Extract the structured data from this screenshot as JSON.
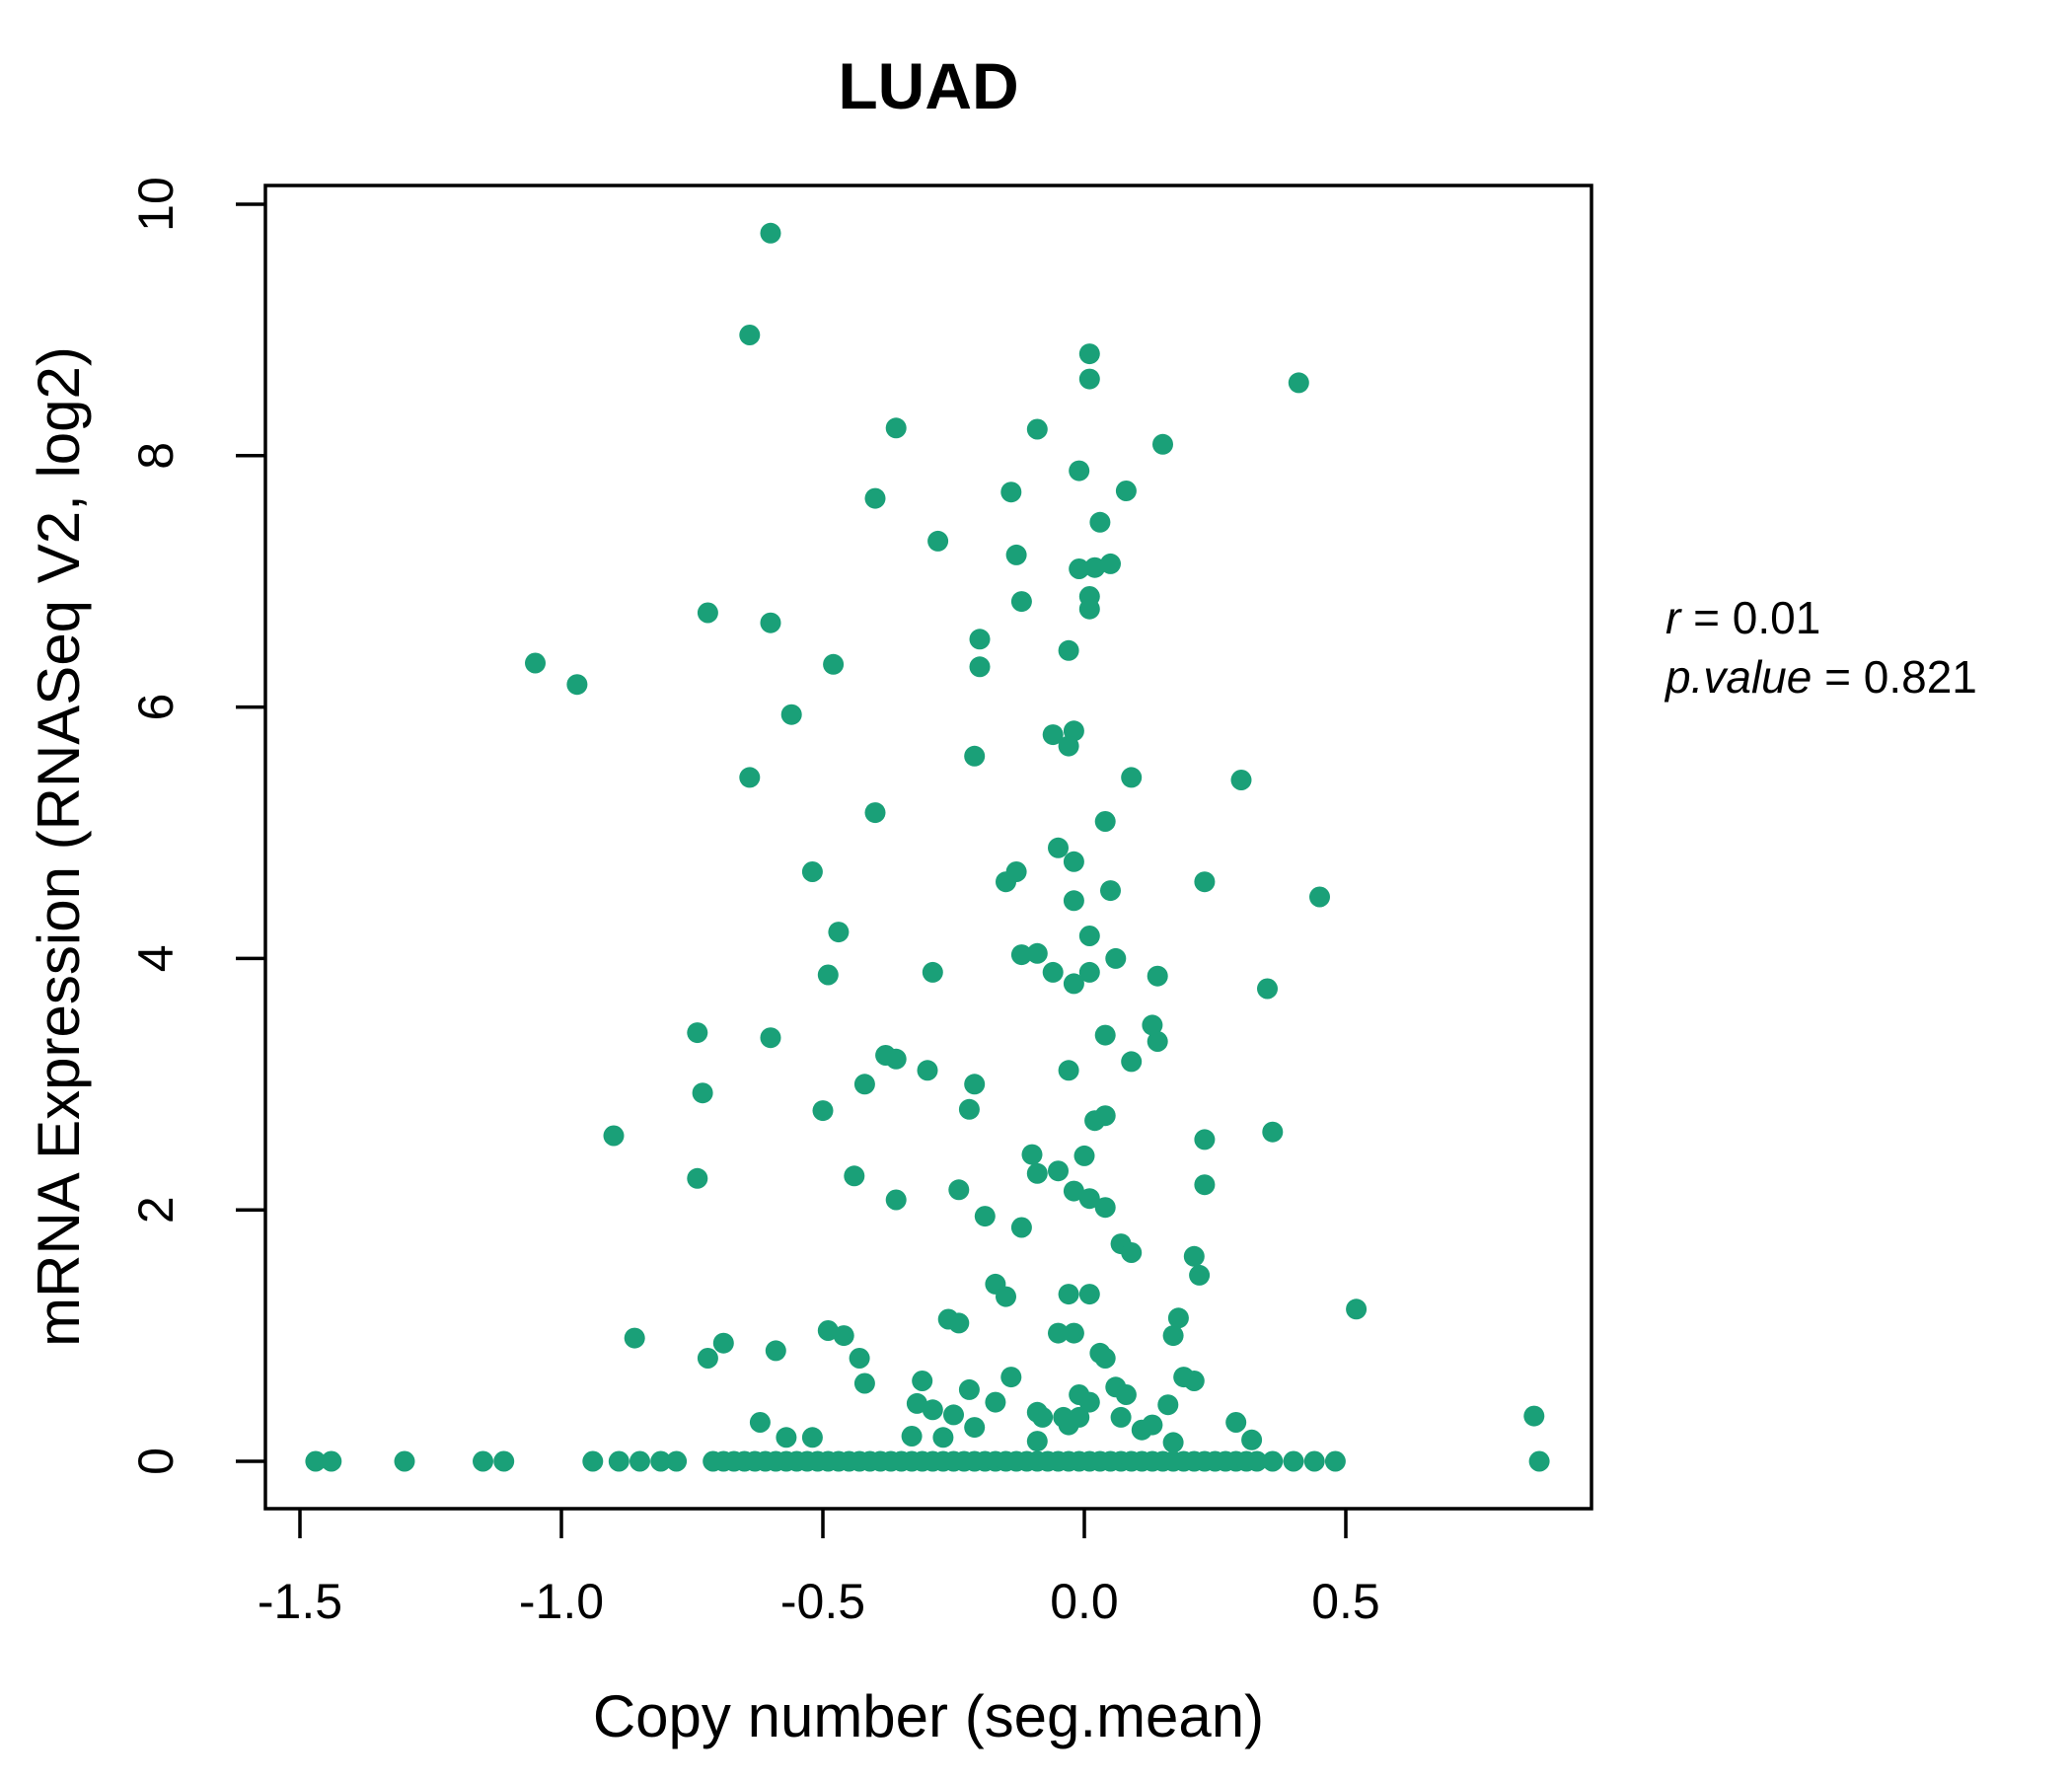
{
  "colors": {
    "accent": "#1AA078",
    "point": "#1AA078",
    "axis": "#000000"
  },
  "annotation": {
    "lines": [
      {
        "var": "r",
        "rest": " = 0.01"
      },
      {
        "var": "p.value",
        "rest": " = 0.821"
      }
    ]
  },
  "chart_data": {
    "type": "scatter",
    "title": "LUAD",
    "xlabel": "Copy number (seg.mean)",
    "ylabel": "mRNA Expression (RNASeq V2, log2)",
    "x_ticks": [
      -1.5,
      -1.0,
      -0.5,
      0.0,
      0.5
    ],
    "x_tick_labels": [
      "-1.5",
      "-1.0",
      "-0.5",
      "0.0",
      "0.5"
    ],
    "y_ticks": [
      0,
      2,
      4,
      6,
      8,
      10
    ],
    "y_tick_labels": [
      "0",
      "2",
      "4",
      "6",
      "8",
      "10"
    ],
    "xlim": [
      -1.57,
      0.97
    ],
    "ylim": [
      -0.38,
      10.15
    ],
    "grid": false,
    "legend": "none",
    "stats": {
      "r": 0.01,
      "p_value": 0.821
    },
    "points": [
      [
        -0.6,
        9.77
      ],
      [
        -0.64,
        8.96
      ],
      [
        0.01,
        8.81
      ],
      [
        0.01,
        8.61
      ],
      [
        -0.36,
        8.22
      ],
      [
        -0.09,
        8.21
      ],
      [
        0.15,
        8.09
      ],
      [
        0.41,
        8.58
      ],
      [
        -0.01,
        7.88
      ],
      [
        0.08,
        7.72
      ],
      [
        -0.4,
        7.66
      ],
      [
        -0.14,
        7.71
      ],
      [
        -0.28,
        7.32
      ],
      [
        0.03,
        7.47
      ],
      [
        -0.13,
        7.21
      ],
      [
        -0.01,
        7.1
      ],
      [
        0.02,
        7.11
      ],
      [
        0.05,
        7.14
      ],
      [
        0.01,
        6.88
      ],
      [
        0.01,
        6.78
      ],
      [
        -0.12,
        6.84
      ],
      [
        -0.6,
        6.67
      ],
      [
        -0.72,
        6.75
      ],
      [
        -1.05,
        6.35
      ],
      [
        -0.97,
        6.18
      ],
      [
        -0.2,
        6.54
      ],
      [
        -0.48,
        6.34
      ],
      [
        -0.03,
        6.45
      ],
      [
        -0.2,
        6.32
      ],
      [
        -0.56,
        5.94
      ],
      [
        -0.06,
        5.78
      ],
      [
        -0.02,
        5.81
      ],
      [
        -0.03,
        5.69
      ],
      [
        -0.21,
        5.61
      ],
      [
        0.09,
        5.44
      ],
      [
        -0.64,
        5.44
      ],
      [
        0.3,
        5.42
      ],
      [
        -0.4,
        5.16
      ],
      [
        0.04,
        5.09
      ],
      [
        -0.05,
        4.88
      ],
      [
        -0.02,
        4.77
      ],
      [
        -0.52,
        4.69
      ],
      [
        -0.15,
        4.61
      ],
      [
        -0.13,
        4.69
      ],
      [
        -0.02,
        4.46
      ],
      [
        0.05,
        4.54
      ],
      [
        0.23,
        4.61
      ],
      [
        0.45,
        4.49
      ],
      [
        -0.47,
        4.21
      ],
      [
        0.01,
        4.18
      ],
      [
        -0.12,
        4.03
      ],
      [
        -0.09,
        4.04
      ],
      [
        -0.06,
        3.89
      ],
      [
        0.01,
        3.89
      ],
      [
        -0.02,
        3.8
      ],
      [
        0.06,
        4.0
      ],
      [
        -0.49,
        3.87
      ],
      [
        -0.29,
        3.89
      ],
      [
        0.14,
        3.86
      ],
      [
        0.35,
        3.76
      ],
      [
        -0.74,
        3.41
      ],
      [
        -0.6,
        3.37
      ],
      [
        0.04,
        3.39
      ],
      [
        0.13,
        3.47
      ],
      [
        0.14,
        3.34
      ],
      [
        -0.38,
        3.23
      ],
      [
        -0.36,
        3.2
      ],
      [
        -0.3,
        3.11
      ],
      [
        -0.03,
        3.11
      ],
      [
        0.09,
        3.18
      ],
      [
        -0.73,
        2.93
      ],
      [
        -0.9,
        2.59
      ],
      [
        -0.74,
        2.25
      ],
      [
        -0.42,
        3.0
      ],
      [
        -0.21,
        3.0
      ],
      [
        -0.22,
        2.8
      ],
      [
        -0.5,
        2.79
      ],
      [
        0.02,
        2.71
      ],
      [
        0.04,
        2.75
      ],
      [
        -0.1,
        2.44
      ],
      [
        0.0,
        2.43
      ],
      [
        -0.09,
        2.29
      ],
      [
        -0.05,
        2.31
      ],
      [
        -0.44,
        2.27
      ],
      [
        -0.36,
        2.08
      ],
      [
        -0.24,
        2.16
      ],
      [
        -0.19,
        1.95
      ],
      [
        -0.12,
        1.86
      ],
      [
        -0.02,
        2.15
      ],
      [
        0.01,
        2.09
      ],
      [
        0.04,
        2.02
      ],
      [
        0.07,
        1.73
      ],
      [
        0.09,
        1.66
      ],
      [
        0.23,
        2.56
      ],
      [
        0.36,
        2.62
      ],
      [
        0.23,
        2.2
      ],
      [
        0.21,
        1.63
      ],
      [
        0.22,
        1.48
      ],
      [
        -0.17,
        1.41
      ],
      [
        -0.15,
        1.31
      ],
      [
        -0.03,
        1.33
      ],
      [
        0.01,
        1.33
      ],
      [
        -0.05,
        1.02
      ],
      [
        -0.02,
        1.02
      ],
      [
        0.03,
        0.86
      ],
      [
        0.04,
        0.82
      ],
      [
        -0.26,
        1.13
      ],
      [
        -0.24,
        1.1
      ],
      [
        -0.49,
        1.04
      ],
      [
        -0.46,
        1.0
      ],
      [
        -0.69,
        0.94
      ],
      [
        -0.59,
        0.88
      ],
      [
        -0.86,
        0.98
      ],
      [
        -0.72,
        0.82
      ],
      [
        0.52,
        1.21
      ],
      [
        0.18,
        1.14
      ],
      [
        0.17,
        1.0
      ],
      [
        -0.43,
        0.82
      ],
      [
        -0.42,
        0.62
      ],
      [
        -0.31,
        0.64
      ],
      [
        -0.32,
        0.46
      ],
      [
        -0.29,
        0.41
      ],
      [
        -0.25,
        0.37
      ],
      [
        -0.22,
        0.57
      ],
      [
        -0.21,
        0.27
      ],
      [
        -0.17,
        0.47
      ],
      [
        -0.14,
        0.67
      ],
      [
        -0.09,
        0.39
      ],
      [
        -0.08,
        0.35
      ],
      [
        -0.04,
        0.35
      ],
      [
        -0.03,
        0.29
      ],
      [
        -0.01,
        0.35
      ],
      [
        -0.01,
        0.53
      ],
      [
        0.01,
        0.47
      ],
      [
        0.06,
        0.59
      ],
      [
        0.08,
        0.53
      ],
      [
        0.07,
        0.35
      ],
      [
        0.11,
        0.25
      ],
      [
        0.13,
        0.29
      ],
      [
        -0.62,
        0.31
      ],
      [
        -0.57,
        0.19
      ],
      [
        -0.52,
        0.19
      ],
      [
        -0.33,
        0.2
      ],
      [
        -0.27,
        0.19
      ],
      [
        -0.09,
        0.16
      ],
      [
        0.19,
        0.67
      ],
      [
        0.21,
        0.64
      ],
      [
        0.16,
        0.45
      ],
      [
        0.29,
        0.31
      ],
      [
        0.32,
        0.17
      ],
      [
        0.17,
        0.15
      ],
      [
        0.86,
        0.36
      ],
      [
        -1.47,
        0
      ],
      [
        -1.44,
        0
      ],
      [
        -1.3,
        0
      ],
      [
        -1.15,
        0
      ],
      [
        -1.11,
        0
      ],
      [
        -0.94,
        0
      ],
      [
        -0.89,
        0
      ],
      [
        -0.85,
        0
      ],
      [
        -0.81,
        0
      ],
      [
        -0.78,
        0
      ],
      [
        -0.71,
        0
      ],
      [
        -0.69,
        0
      ],
      [
        -0.67,
        0
      ],
      [
        -0.65,
        0
      ],
      [
        -0.63,
        0
      ],
      [
        -0.61,
        0
      ],
      [
        -0.59,
        0
      ],
      [
        -0.57,
        0
      ],
      [
        -0.55,
        0
      ],
      [
        -0.53,
        0
      ],
      [
        -0.51,
        0
      ],
      [
        -0.49,
        0
      ],
      [
        -0.47,
        0
      ],
      [
        -0.45,
        0
      ],
      [
        -0.43,
        0
      ],
      [
        -0.41,
        0
      ],
      [
        -0.39,
        0
      ],
      [
        -0.37,
        0
      ],
      [
        -0.35,
        0
      ],
      [
        -0.33,
        0
      ],
      [
        -0.31,
        0
      ],
      [
        -0.29,
        0
      ],
      [
        -0.27,
        0
      ],
      [
        -0.25,
        0
      ],
      [
        -0.23,
        0
      ],
      [
        -0.21,
        0
      ],
      [
        -0.19,
        0
      ],
      [
        -0.17,
        0
      ],
      [
        -0.15,
        0
      ],
      [
        -0.13,
        0
      ],
      [
        -0.11,
        0
      ],
      [
        -0.09,
        0
      ],
      [
        -0.07,
        0
      ],
      [
        -0.05,
        0
      ],
      [
        -0.03,
        0
      ],
      [
        -0.01,
        0
      ],
      [
        0.01,
        0
      ],
      [
        0.03,
        0
      ],
      [
        0.05,
        0
      ],
      [
        0.07,
        0
      ],
      [
        0.09,
        0
      ],
      [
        0.11,
        0
      ],
      [
        0.13,
        0
      ],
      [
        0.15,
        0
      ],
      [
        0.17,
        0
      ],
      [
        0.19,
        0
      ],
      [
        0.21,
        0
      ],
      [
        0.23,
        0
      ],
      [
        0.25,
        0
      ],
      [
        0.27,
        0
      ],
      [
        0.29,
        0
      ],
      [
        0.31,
        0
      ],
      [
        0.33,
        0
      ],
      [
        0.36,
        0
      ],
      [
        0.4,
        0
      ],
      [
        0.44,
        0
      ],
      [
        0.48,
        0
      ],
      [
        0.87,
        0
      ]
    ]
  }
}
